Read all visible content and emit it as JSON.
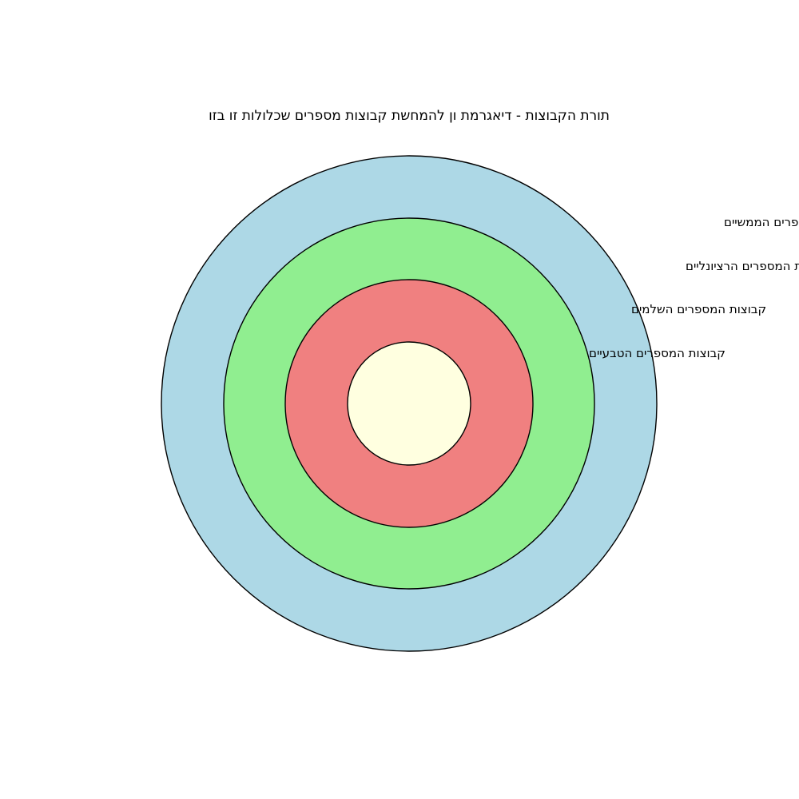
{
  "title": "תורת הקבוצות - דיאגרמת ון להמחשת קבוצות מספרים שכלולות זו בזו",
  "sets": [
    {
      "label": "קבוצות המספרים הממשיים",
      "color": "#add8e6"
    },
    {
      "label": "קבוצות המספרים הרציונליים",
      "color": "#90ee90"
    },
    {
      "label": "קבוצות המספרים השלמים",
      "color": "#f08080"
    },
    {
      "label": "קבוצות המספרים הטבעיים",
      "color": "#ffffe0"
    }
  ]
}
